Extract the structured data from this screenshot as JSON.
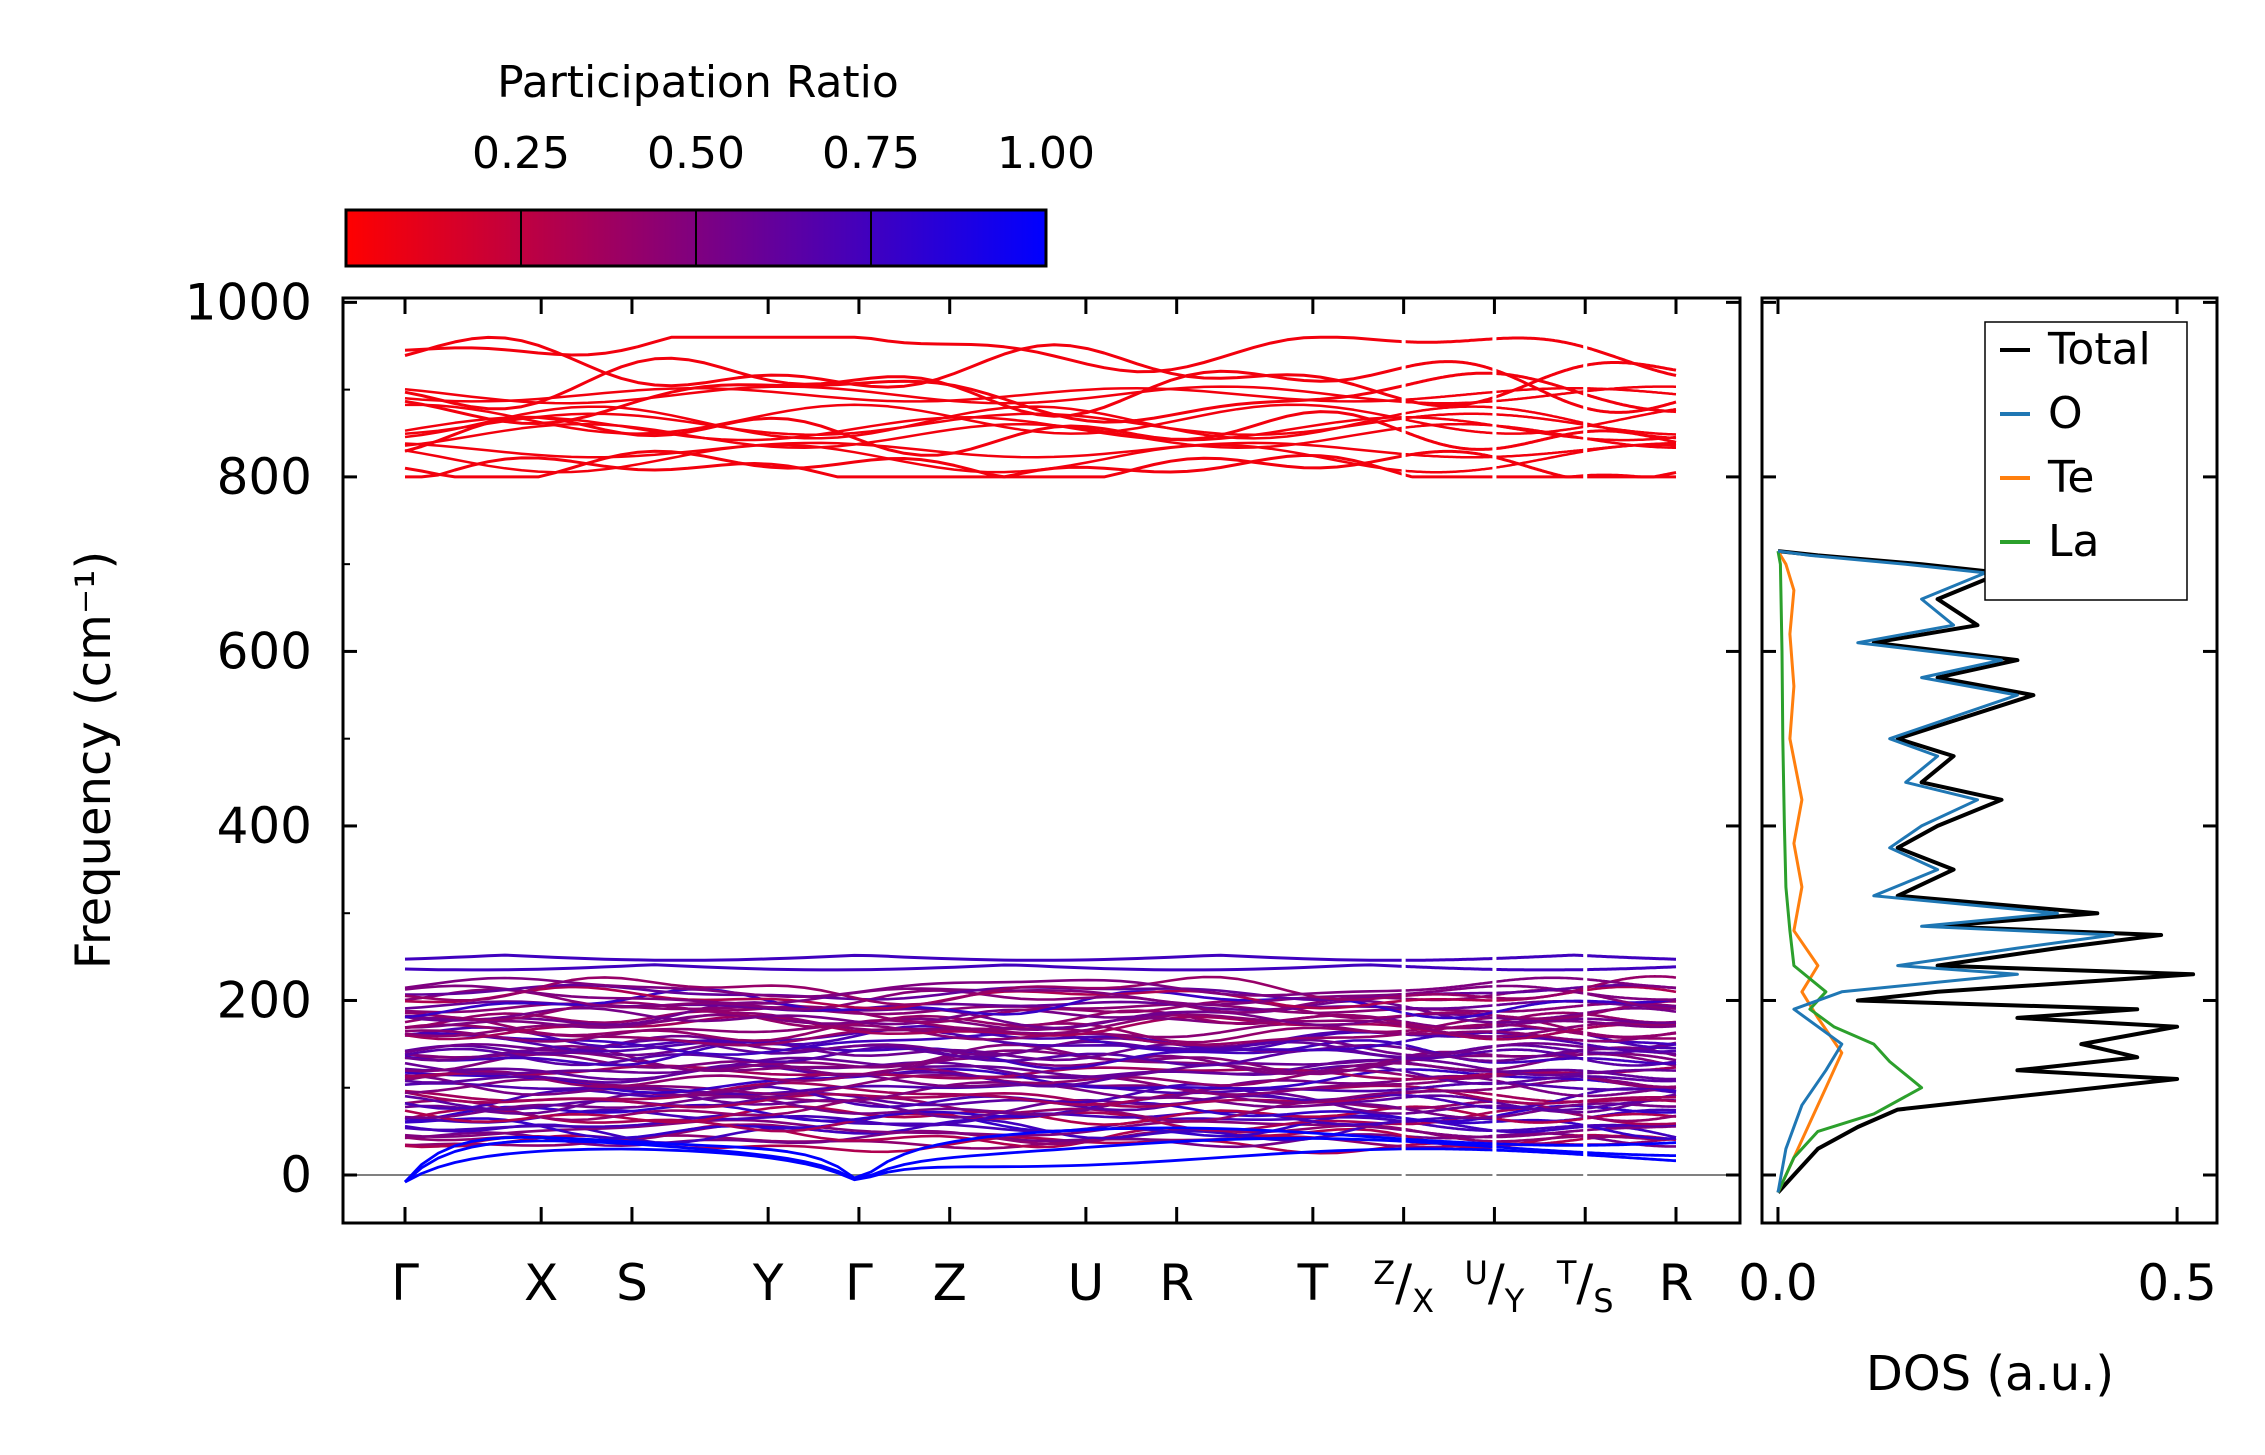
{
  "colors": {
    "low_participation": "#ff0000",
    "high_participation": "#0000ff",
    "total": "#000000",
    "O": "#1f77b4",
    "Te": "#ff7f0e",
    "La": "#2ca02c",
    "zero_line": "#808080"
  },
  "chart_data": [
    {
      "type": "line",
      "title": "",
      "ylabel": "Frequency (cm⁻¹)",
      "xlabel": "",
      "ylim": [
        -55,
        1005
      ],
      "yticks": [
        0,
        200,
        400,
        600,
        800,
        1000
      ],
      "high_symmetry_points": [
        "Γ",
        "X",
        "S",
        "Y",
        "Γ",
        "Z",
        "U",
        "R",
        "T",
        "Z/X",
        "U/Y",
        "T/S",
        "R"
      ],
      "kpath_distances": [
        0,
        1.5,
        2.5,
        4.0,
        5.0,
        6.0,
        7.5,
        8.5,
        10.0,
        11.0,
        12.0,
        13.0,
        14.0
      ],
      "path_breaks": [
        11.0,
        12.0,
        13.0
      ],
      "color_encoding": "participation_ratio",
      "bands": {
        "high_frequency_branch_range": [
          800,
          960
        ],
        "high_frequency_participation": 0.05,
        "low_frequency_branch_range": [
          25,
          255
        ],
        "low_frequency_participation_range": [
          0.3,
          1.0
        ],
        "acoustic_minimum": -8,
        "representative_high_bands_at_gamma": [
          960,
          930,
          905,
          890,
          850,
          812,
          805
        ],
        "representative_top_low_bands": [
          252,
          245
        ],
        "lowest_optical_band": 35
      },
      "colorbar": {
        "label": "Participation Ratio",
        "ticks": [
          "0.25",
          "0.50",
          "0.75",
          "1.00"
        ],
        "tick_values": [
          0.25,
          0.5,
          0.75,
          1.0
        ],
        "range": [
          0.0,
          1.0
        ]
      }
    },
    {
      "type": "line",
      "title": "",
      "xlabel": "DOS (a.u.)",
      "ylabel": "",
      "xlim": [
        -0.02,
        0.55
      ],
      "xticks": [
        "0.0",
        "0.5"
      ],
      "xtick_values": [
        0.0,
        0.5
      ],
      "ylim": [
        -55,
        1005
      ],
      "legend_position": "top-right",
      "series": [
        {
          "name": "Total",
          "points": [
            [
              0,
              -20
            ],
            [
              0.02,
              0
            ],
            [
              0.05,
              30
            ],
            [
              0.1,
              55
            ],
            [
              0.15,
              75
            ],
            [
              0.25,
              85
            ],
            [
              0.35,
              95
            ],
            [
              0.5,
              110
            ],
            [
              0.3,
              120
            ],
            [
              0.45,
              135
            ],
            [
              0.38,
              150
            ],
            [
              0.5,
              170
            ],
            [
              0.3,
              180
            ],
            [
              0.45,
              190
            ],
            [
              0.1,
              200
            ],
            [
              0.2,
              210
            ],
            [
              0.52,
              230
            ],
            [
              0.2,
              240
            ],
            [
              0.35,
              260
            ],
            [
              0.48,
              275
            ],
            [
              0.2,
              285
            ],
            [
              0.4,
              300
            ],
            [
              0.15,
              320
            ],
            [
              0.22,
              350
            ],
            [
              0.15,
              375
            ],
            [
              0.2,
              400
            ],
            [
              0.28,
              430
            ],
            [
              0.18,
              450
            ],
            [
              0.22,
              480
            ],
            [
              0.15,
              500
            ],
            [
              0.32,
              550
            ],
            [
              0.2,
              570
            ],
            [
              0.3,
              590
            ],
            [
              0.12,
              610
            ],
            [
              0.25,
              630
            ],
            [
              0.2,
              660
            ],
            [
              0.28,
              690
            ],
            [
              0.18,
              700
            ],
            [
              0.05,
              710
            ],
            [
              0.0,
              715
            ]
          ]
        },
        {
          "name": "O",
          "points": [
            [
              0,
              -20
            ],
            [
              0.01,
              30
            ],
            [
              0.03,
              80
            ],
            [
              0.06,
              120
            ],
            [
              0.08,
              150
            ],
            [
              0.02,
              190
            ],
            [
              0.08,
              210
            ],
            [
              0.3,
              230
            ],
            [
              0.15,
              240
            ],
            [
              0.3,
              260
            ],
            [
              0.42,
              275
            ],
            [
              0.18,
              285
            ],
            [
              0.35,
              300
            ],
            [
              0.12,
              320
            ],
            [
              0.2,
              350
            ],
            [
              0.14,
              375
            ],
            [
              0.18,
              400
            ],
            [
              0.25,
              430
            ],
            [
              0.16,
              450
            ],
            [
              0.2,
              480
            ],
            [
              0.14,
              500
            ],
            [
              0.3,
              550
            ],
            [
              0.18,
              570
            ],
            [
              0.28,
              590
            ],
            [
              0.1,
              610
            ],
            [
              0.22,
              630
            ],
            [
              0.18,
              660
            ],
            [
              0.26,
              690
            ],
            [
              0.16,
              700
            ],
            [
              0.04,
              710
            ],
            [
              0.0,
              715
            ]
          ]
        },
        {
          "name": "Te",
          "points": [
            [
              0,
              -20
            ],
            [
              0.02,
              20
            ],
            [
              0.04,
              60
            ],
            [
              0.06,
              100
            ],
            [
              0.08,
              140
            ],
            [
              0.05,
              180
            ],
            [
              0.03,
              210
            ],
            [
              0.05,
              240
            ],
            [
              0.02,
              280
            ],
            [
              0.03,
              330
            ],
            [
              0.02,
              380
            ],
            [
              0.03,
              430
            ],
            [
              0.015,
              500
            ],
            [
              0.02,
              560
            ],
            [
              0.015,
              620
            ],
            [
              0.02,
              670
            ],
            [
              0.01,
              700
            ],
            [
              0.0,
              715
            ]
          ]
        },
        {
          "name": "La",
          "points": [
            [
              0,
              -20
            ],
            [
              0.02,
              20
            ],
            [
              0.05,
              50
            ],
            [
              0.12,
              70
            ],
            [
              0.18,
              100
            ],
            [
              0.14,
              130
            ],
            [
              0.12,
              150
            ],
            [
              0.07,
              170
            ],
            [
              0.04,
              190
            ],
            [
              0.06,
              210
            ],
            [
              0.02,
              240
            ],
            [
              0.015,
              280
            ],
            [
              0.01,
              330
            ],
            [
              0.008,
              400
            ],
            [
              0.006,
              500
            ],
            [
              0.005,
              600
            ],
            [
              0.003,
              700
            ],
            [
              0.0,
              715
            ]
          ]
        }
      ]
    }
  ]
}
